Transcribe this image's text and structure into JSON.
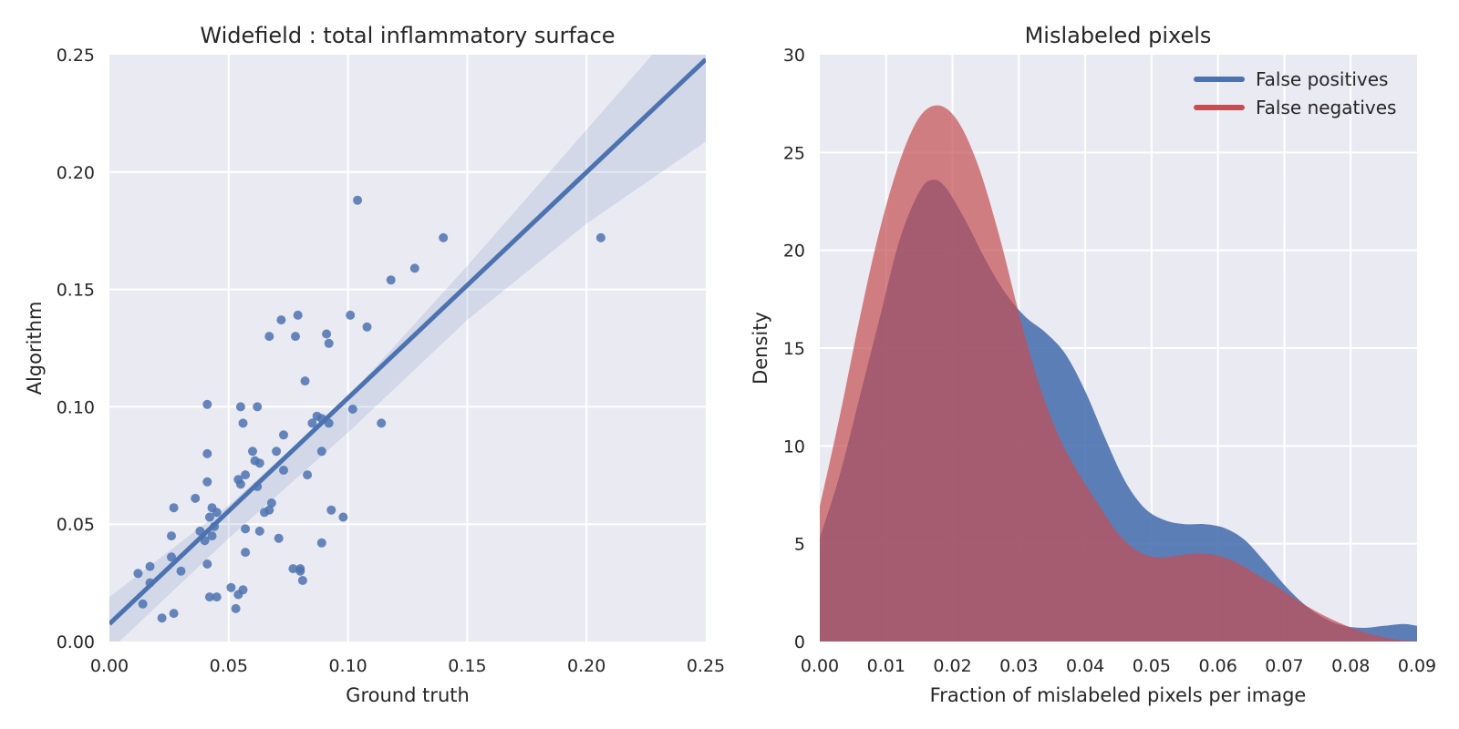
{
  "chart_data": [
    {
      "type": "scatter",
      "title": "Widefield : total inflammatory surface",
      "xlabel": "Ground truth",
      "ylabel": "Algorithm",
      "xlim": [
        0.0,
        0.25
      ],
      "ylim": [
        0.0,
        0.25
      ],
      "xticks": [
        "0.00",
        "0.05",
        "0.10",
        "0.15",
        "0.20",
        "0.25"
      ],
      "yticks": [
        "0.00",
        "0.05",
        "0.10",
        "0.15",
        "0.20",
        "0.25"
      ],
      "grid": true,
      "point_color": "#4c72b0",
      "regression": {
        "x": [
          0.0,
          0.25
        ],
        "y": [
          0.0075,
          0.248
        ],
        "ci_upper": [
          [
            0.0,
            0.019
          ],
          [
            0.05,
            0.058
          ],
          [
            0.1,
            0.104
          ],
          [
            0.15,
            0.16
          ],
          [
            0.2,
            0.218
          ],
          [
            0.25,
            0.276
          ]
        ],
        "ci_lower": [
          [
            0.0,
            -0.004
          ],
          [
            0.05,
            0.044
          ],
          [
            0.1,
            0.089
          ],
          [
            0.15,
            0.137
          ],
          [
            0.2,
            0.178
          ],
          [
            0.25,
            0.213
          ]
        ]
      },
      "points": [
        [
          0.012,
          0.029
        ],
        [
          0.014,
          0.016
        ],
        [
          0.017,
          0.032
        ],
        [
          0.017,
          0.025
        ],
        [
          0.022,
          0.01
        ],
        [
          0.026,
          0.036
        ],
        [
          0.026,
          0.045
        ],
        [
          0.027,
          0.057
        ],
        [
          0.027,
          0.012
        ],
        [
          0.03,
          0.03
        ],
        [
          0.036,
          0.061
        ],
        [
          0.038,
          0.047
        ],
        [
          0.04,
          0.043
        ],
        [
          0.041,
          0.101
        ],
        [
          0.041,
          0.08
        ],
        [
          0.041,
          0.068
        ],
        [
          0.041,
          0.033
        ],
        [
          0.042,
          0.053
        ],
        [
          0.042,
          0.019
        ],
        [
          0.043,
          0.057
        ],
        [
          0.043,
          0.045
        ],
        [
          0.044,
          0.049
        ],
        [
          0.045,
          0.055
        ],
        [
          0.045,
          0.019
        ],
        [
          0.051,
          0.023
        ],
        [
          0.053,
          0.014
        ],
        [
          0.054,
          0.069
        ],
        [
          0.054,
          0.02
        ],
        [
          0.055,
          0.1
        ],
        [
          0.055,
          0.067
        ],
        [
          0.056,
          0.093
        ],
        [
          0.056,
          0.022
        ],
        [
          0.057,
          0.071
        ],
        [
          0.057,
          0.048
        ],
        [
          0.057,
          0.038
        ],
        [
          0.06,
          0.081
        ],
        [
          0.061,
          0.077
        ],
        [
          0.062,
          0.066
        ],
        [
          0.062,
          0.1
        ],
        [
          0.063,
          0.076
        ],
        [
          0.063,
          0.047
        ],
        [
          0.065,
          0.055
        ],
        [
          0.067,
          0.056
        ],
        [
          0.067,
          0.13
        ],
        [
          0.068,
          0.059
        ],
        [
          0.07,
          0.081
        ],
        [
          0.071,
          0.044
        ],
        [
          0.072,
          0.137
        ],
        [
          0.073,
          0.088
        ],
        [
          0.073,
          0.073
        ],
        [
          0.077,
          0.031
        ],
        [
          0.078,
          0.13
        ],
        [
          0.079,
          0.139
        ],
        [
          0.08,
          0.03
        ],
        [
          0.08,
          0.031
        ],
        [
          0.081,
          0.026
        ],
        [
          0.082,
          0.111
        ],
        [
          0.083,
          0.071
        ],
        [
          0.085,
          0.093
        ],
        [
          0.087,
          0.096
        ],
        [
          0.089,
          0.095
        ],
        [
          0.089,
          0.081
        ],
        [
          0.089,
          0.042
        ],
        [
          0.091,
          0.131
        ],
        [
          0.092,
          0.127
        ],
        [
          0.092,
          0.093
        ],
        [
          0.093,
          0.056
        ],
        [
          0.098,
          0.053
        ],
        [
          0.101,
          0.139
        ],
        [
          0.102,
          0.099
        ],
        [
          0.104,
          0.188
        ],
        [
          0.108,
          0.134
        ],
        [
          0.114,
          0.093
        ],
        [
          0.118,
          0.154
        ],
        [
          0.128,
          0.159
        ],
        [
          0.14,
          0.172
        ],
        [
          0.206,
          0.172
        ]
      ]
    },
    {
      "type": "area",
      "title": "Mislabeled pixels",
      "xlabel": "Fraction of mislabeled pixels per image",
      "ylabel": "Density",
      "xlim": [
        0.0,
        0.09
      ],
      "ylim": [
        0,
        30
      ],
      "xticks": [
        "0.00",
        "0.01",
        "0.02",
        "0.03",
        "0.04",
        "0.05",
        "0.06",
        "0.07",
        "0.08",
        "0.09"
      ],
      "yticks": [
        "0",
        "5",
        "10",
        "15",
        "20",
        "25",
        "30"
      ],
      "grid": true,
      "legend_position": "top-right",
      "series": [
        {
          "name": "False positives",
          "color": "#4c72b0",
          "x": [
            0.0,
            0.003,
            0.006,
            0.009,
            0.012,
            0.015,
            0.017,
            0.019,
            0.022,
            0.025,
            0.028,
            0.031,
            0.034,
            0.037,
            0.04,
            0.043,
            0.046,
            0.049,
            0.052,
            0.055,
            0.058,
            0.061,
            0.064,
            0.067,
            0.07,
            0.073,
            0.076,
            0.079,
            0.082,
            0.085,
            0.088,
            0.09
          ],
          "y": [
            5.3,
            8.5,
            12.5,
            16.5,
            20.5,
            23.0,
            23.6,
            23.2,
            21.5,
            19.5,
            17.8,
            16.6,
            15.8,
            14.7,
            12.8,
            10.4,
            8.2,
            6.8,
            6.2,
            6.0,
            6.0,
            5.8,
            5.2,
            4.1,
            2.9,
            1.9,
            1.2,
            0.8,
            0.7,
            0.8,
            0.9,
            0.8
          ]
        },
        {
          "name": "False negatives",
          "color": "#c44e52",
          "x": [
            0.0,
            0.003,
            0.006,
            0.009,
            0.012,
            0.015,
            0.018,
            0.021,
            0.024,
            0.027,
            0.03,
            0.033,
            0.036,
            0.039,
            0.042,
            0.045,
            0.048,
            0.051,
            0.054,
            0.057,
            0.06,
            0.063,
            0.066,
            0.069,
            0.072,
            0.075,
            0.078,
            0.081,
            0.084,
            0.087,
            0.09
          ],
          "y": [
            6.9,
            11.5,
            16.5,
            21.0,
            24.5,
            26.8,
            27.4,
            26.5,
            24.2,
            20.8,
            16.8,
            13.2,
            10.5,
            8.6,
            7.0,
            5.5,
            4.6,
            4.3,
            4.4,
            4.5,
            4.4,
            4.0,
            3.4,
            2.8,
            2.1,
            1.5,
            1.0,
            0.6,
            0.3,
            0.1,
            0.0
          ]
        }
      ]
    }
  ]
}
